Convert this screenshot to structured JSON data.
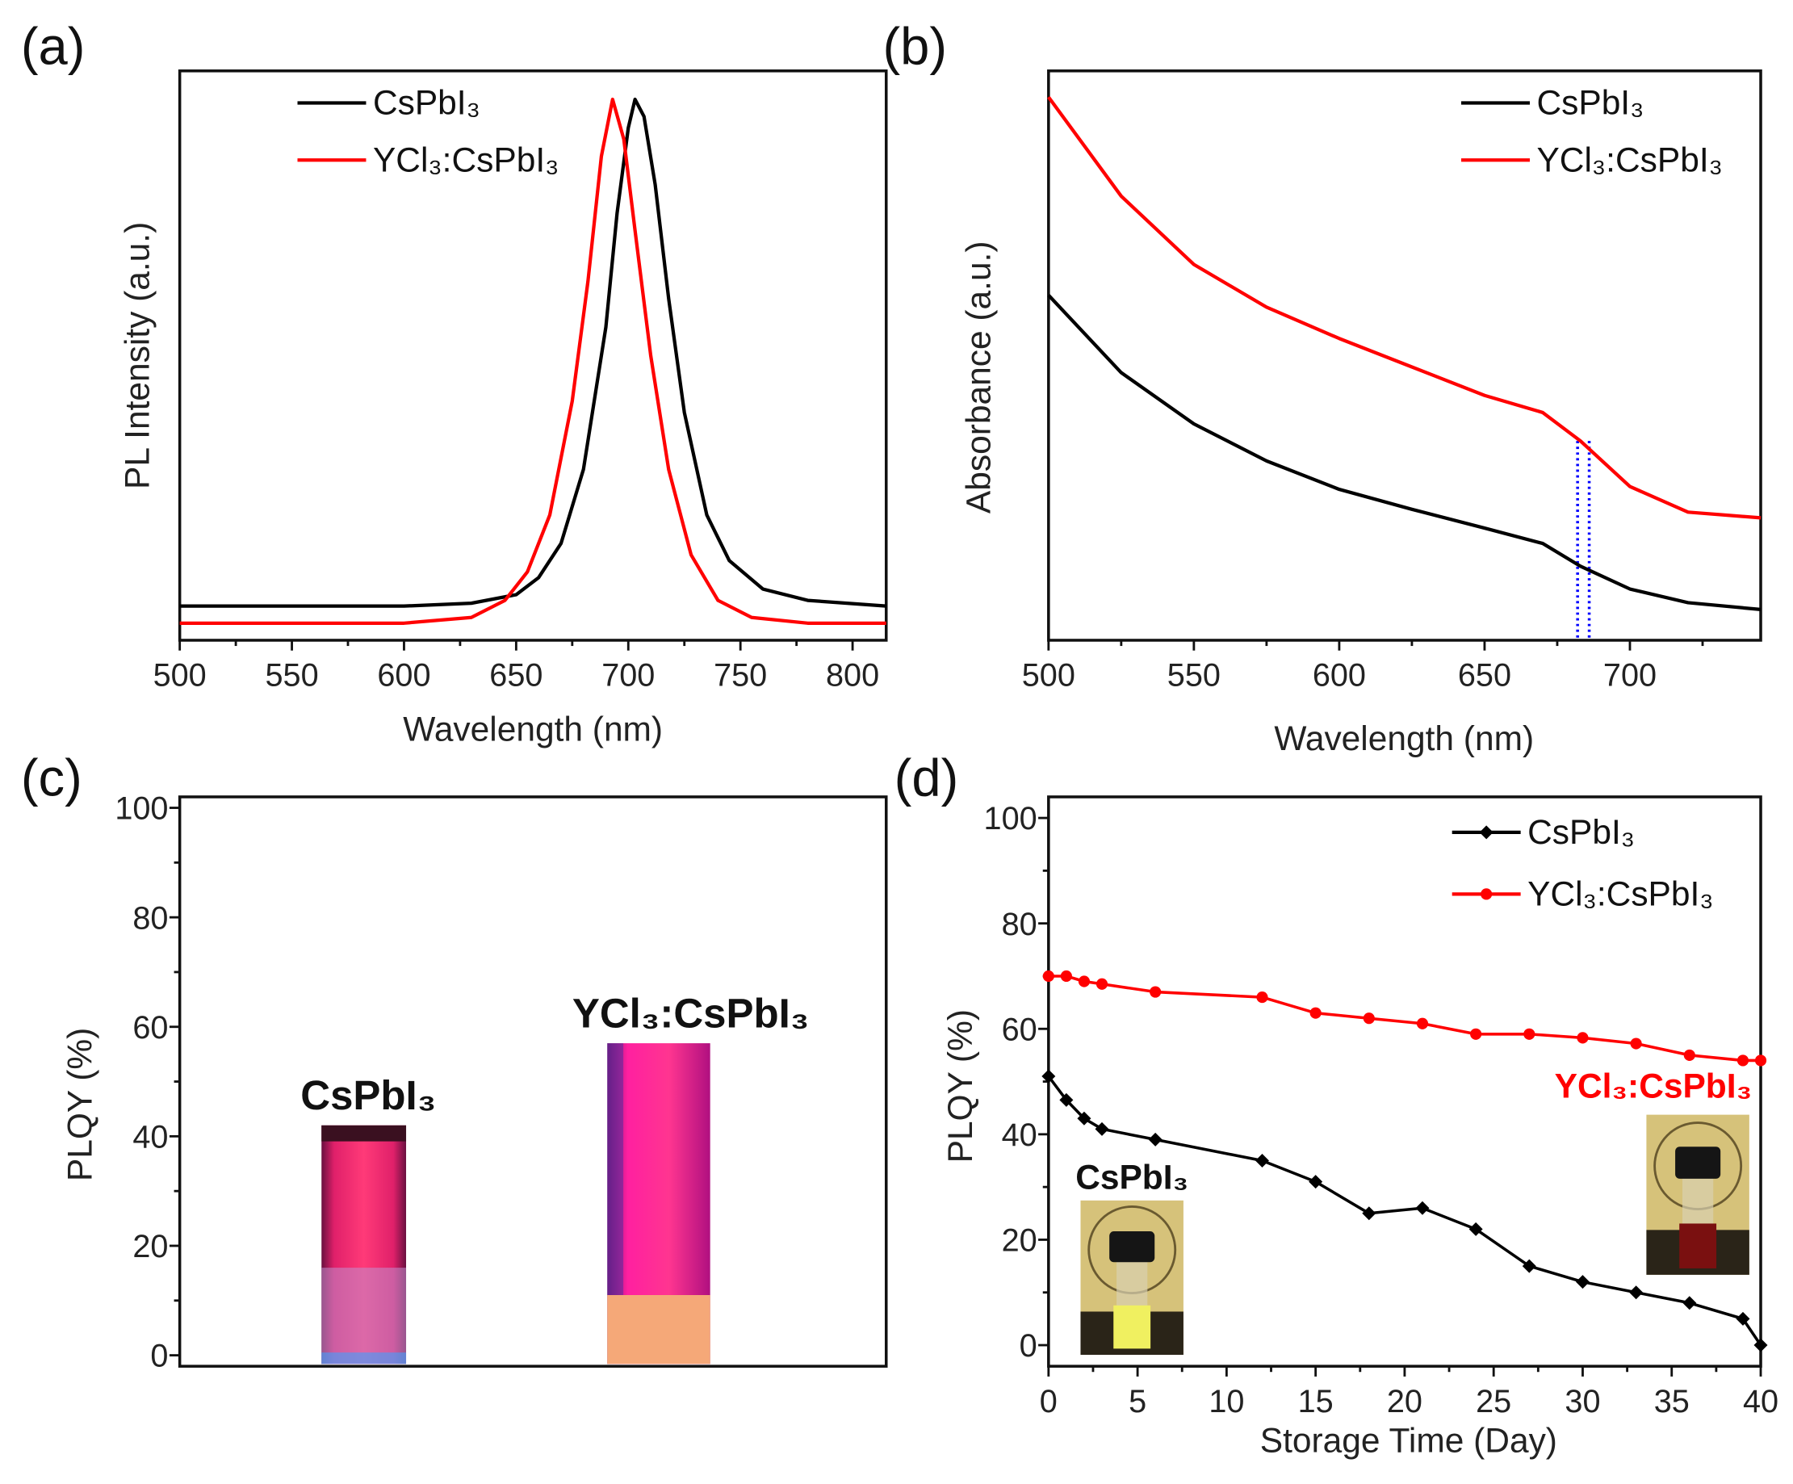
{
  "chart_data": [
    {
      "panel": "(a)",
      "type": "line",
      "xlabel": "Wavelength (nm)",
      "ylabel": "PL Intensity (a.u.)",
      "xlim": [
        500,
        815
      ],
      "ylim": [
        0,
        1
      ],
      "xticks": [
        500,
        550,
        600,
        650,
        700,
        750,
        800
      ],
      "legend": "top-left",
      "series": [
        {
          "name": "CsPbI₃",
          "color": "#000000",
          "x": [
            500,
            600,
            630,
            650,
            660,
            670,
            680,
            690,
            695,
            700,
            703,
            707,
            712,
            718,
            725,
            735,
            745,
            760,
            780,
            815
          ],
          "y": [
            0.06,
            0.06,
            0.065,
            0.08,
            0.11,
            0.17,
            0.3,
            0.55,
            0.75,
            0.9,
            0.95,
            0.92,
            0.8,
            0.6,
            0.4,
            0.22,
            0.14,
            0.09,
            0.07,
            0.06
          ]
        },
        {
          "name": "YCl₃:CsPbI₃",
          "color": "#ff0000",
          "x": [
            500,
            600,
            630,
            645,
            655,
            665,
            675,
            682,
            688,
            693,
            698,
            703,
            710,
            718,
            728,
            740,
            755,
            780,
            815
          ],
          "y": [
            0.03,
            0.03,
            0.04,
            0.07,
            0.12,
            0.22,
            0.42,
            0.63,
            0.85,
            0.95,
            0.88,
            0.72,
            0.5,
            0.3,
            0.15,
            0.07,
            0.04,
            0.03,
            0.03
          ]
        }
      ]
    },
    {
      "panel": "(b)",
      "type": "line",
      "xlabel": "Wavelength (nm)",
      "ylabel": "Absorbance (a.u.)",
      "xlim": [
        500,
        745
      ],
      "ylim": [
        0,
        1
      ],
      "xticks": [
        500,
        550,
        600,
        650,
        700
      ],
      "legend": "top-right",
      "series": [
        {
          "name": "CsPbI₃",
          "color": "#000000",
          "x": [
            500,
            525,
            550,
            575,
            600,
            625,
            650,
            670,
            683,
            700,
            720,
            745
          ],
          "y": [
            0.606,
            0.47,
            0.38,
            0.315,
            0.265,
            0.23,
            0.197,
            0.17,
            0.13,
            0.09,
            0.066,
            0.054
          ]
        },
        {
          "name": "YCl₃:CsPbI₃",
          "color": "#ff0000",
          "x": [
            500,
            525,
            550,
            575,
            600,
            625,
            650,
            670,
            683,
            700,
            720,
            745
          ],
          "y": [
            0.954,
            0.78,
            0.66,
            0.585,
            0.53,
            0.48,
            0.43,
            0.4,
            0.35,
            0.27,
            0.225,
            0.215
          ]
        }
      ],
      "markers": {
        "type": "vertical-dotted",
        "color": "#0000ff",
        "x": [
          682,
          686
        ]
      }
    },
    {
      "panel": "(c)",
      "type": "bar",
      "ylabel": "PLQY (%)",
      "ylim": [
        -2,
        102
      ],
      "yticks": [
        0,
        20,
        40,
        60,
        80,
        100
      ],
      "categories": [
        "CsPbI₃",
        "YCl₃:CsPbI₃"
      ],
      "values": [
        42,
        57
      ]
    },
    {
      "panel": "(d)",
      "type": "line",
      "xlabel": "Storage Time (Day)",
      "ylabel": "PLQY (%)",
      "xlim": [
        0,
        40
      ],
      "ylim": [
        -4,
        104
      ],
      "xticks": [
        0,
        5,
        10,
        15,
        20,
        25,
        30,
        35,
        40
      ],
      "yticks": [
        0,
        20,
        40,
        60,
        80,
        100
      ],
      "legend": "top-right",
      "series": [
        {
          "name": "CsPbI₃",
          "color": "#000000",
          "marker": "diamond",
          "x": [
            0,
            1,
            2,
            3,
            6,
            12,
            15,
            18,
            21,
            24,
            27,
            30,
            33,
            36,
            39,
            40
          ],
          "y": [
            51,
            46.5,
            43,
            41,
            39,
            35,
            31,
            25,
            26,
            22,
            15,
            12,
            10,
            8,
            5,
            0
          ]
        },
        {
          "name": "YCl₃:CsPbI₃",
          "color": "#ff0000",
          "marker": "circle",
          "x": [
            0,
            1,
            2,
            3,
            6,
            12,
            15,
            18,
            21,
            24,
            27,
            30,
            33,
            36,
            39,
            40
          ],
          "y": [
            70,
            70,
            69,
            68.5,
            67,
            66,
            63,
            62,
            61,
            59,
            59,
            58.3,
            57.2,
            55,
            54,
            54
          ]
        }
      ],
      "annotations": [
        "CsPbI₃",
        "YCl₃:CsPbI₃"
      ]
    }
  ]
}
